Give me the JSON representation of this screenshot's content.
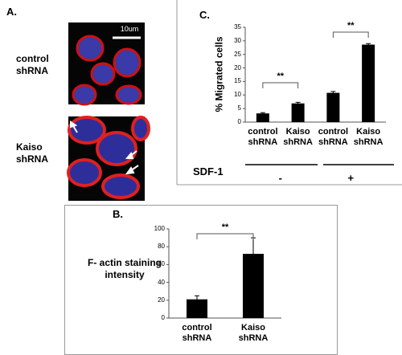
{
  "panel_a": {
    "label": "A.",
    "scale_bar": "10um",
    "rows": [
      "control shRNA",
      "Kaiso shRNA"
    ]
  },
  "chart_data": [
    {
      "type": "bar",
      "panel": "C.",
      "ylabel": "% Migrated cells",
      "categories": [
        "control shRNA",
        "Kaiso shRNA",
        "control shRNA",
        "Kaiso shRNA"
      ],
      "values": [
        3.2,
        6.9,
        10.8,
        28.6
      ],
      "errors": [
        0.3,
        0.4,
        0.5,
        0.4
      ],
      "color": "#000000",
      "ylim": [
        0,
        35
      ],
      "yticks": [
        0,
        5,
        10,
        15,
        20,
        25,
        30,
        35
      ],
      "grid": false,
      "annotations": [
        "**",
        "**"
      ],
      "group_label": "SDF-1",
      "groups": [
        "-",
        "+"
      ]
    },
    {
      "type": "bar",
      "panel": "B.",
      "ylabel": "F- actin staining intensity",
      "categories": [
        "control shRNA",
        "Kaiso shRNA"
      ],
      "values": [
        21,
        72
      ],
      "errors": [
        4,
        18
      ],
      "color": "#000000",
      "ylim": [
        0,
        100
      ],
      "yticks": [
        0,
        20,
        40,
        60,
        80,
        100
      ],
      "grid": false,
      "annotations": [
        "**"
      ]
    }
  ]
}
